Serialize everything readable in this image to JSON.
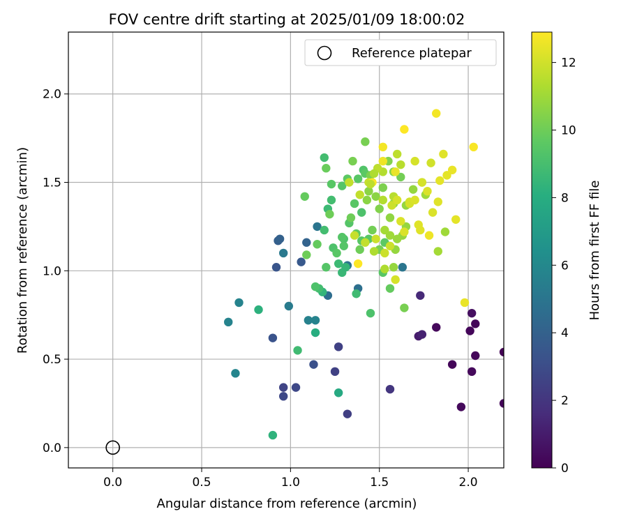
{
  "chart_data": {
    "type": "scatter",
    "title": "FOV centre drift starting at 2025/01/09 18:00:02",
    "xlabel": "Angular distance from reference (arcmin)",
    "ylabel": "Rotation from reference (arcmin)",
    "xlim": [
      -0.25,
      2.2
    ],
    "ylim": [
      -0.115,
      2.35
    ],
    "xticks": [
      "0.0",
      "0.5",
      "1.0",
      "1.5",
      "2.0"
    ],
    "yticks": [
      "0.0",
      "0.5",
      "1.0",
      "1.5",
      "2.0"
    ],
    "grid": true,
    "legend": {
      "placement": "top-right",
      "entries": [
        "Reference platepar"
      ]
    },
    "reference": {
      "x": 0.0,
      "y": 0.0,
      "label": "Reference platepar"
    },
    "colorbar": {
      "label": "Hours from first FF file",
      "min": 0,
      "max": 12.9,
      "ticks": [
        "0",
        "2",
        "4",
        "6",
        "8",
        "10",
        "12"
      ],
      "colormap": "viridis"
    },
    "points": [
      [
        2.01,
        0.66,
        0.2
      ],
      [
        2.04,
        0.7,
        0.2
      ],
      [
        2.04,
        0.52,
        0.2
      ],
      [
        2.02,
        0.43,
        0.3
      ],
      [
        2.02,
        0.76,
        0.5
      ],
      [
        1.96,
        0.23,
        0.3
      ],
      [
        1.91,
        0.47,
        0.2
      ],
      [
        2.2,
        0.54,
        0.1
      ],
      [
        2.2,
        0.25,
        0.2
      ],
      [
        1.82,
        0.68,
        0.3
      ],
      [
        1.72,
        0.63,
        1.0
      ],
      [
        1.74,
        0.64,
        1.2
      ],
      [
        1.73,
        0.86,
        1.5
      ],
      [
        1.56,
        0.33,
        2.0
      ],
      [
        1.32,
        0.19,
        2.4
      ],
      [
        1.27,
        0.57,
        2.5
      ],
      [
        1.25,
        0.43,
        2.5
      ],
      [
        0.96,
        0.34,
        2.6
      ],
      [
        0.96,
        0.29,
        2.8
      ],
      [
        1.03,
        0.34,
        2.8
      ],
      [
        1.13,
        0.47,
        3.2
      ],
      [
        0.9,
        0.62,
        3.3
      ],
      [
        0.92,
        1.02,
        3.4
      ],
      [
        1.06,
        1.05,
        3.6
      ],
      [
        0.93,
        1.17,
        3.9
      ],
      [
        0.94,
        1.18,
        4.0
      ],
      [
        1.09,
        1.16,
        4.1
      ],
      [
        1.15,
        1.25,
        5.0
      ],
      [
        1.21,
        0.86,
        4.6
      ],
      [
        1.38,
        0.9,
        4.7
      ],
      [
        1.32,
        1.03,
        4.9
      ],
      [
        1.63,
        1.02,
        5.0
      ],
      [
        0.96,
        1.1,
        5.2
      ],
      [
        0.99,
        0.8,
        5.3
      ],
      [
        1.1,
        0.72,
        5.6
      ],
      [
        1.14,
        0.72,
        5.7
      ],
      [
        0.71,
        0.82,
        5.7
      ],
      [
        0.65,
        0.71,
        5.7
      ],
      [
        0.69,
        0.42,
        5.8
      ],
      [
        1.27,
        0.31,
        7.8
      ],
      [
        0.9,
        0.07,
        8.3
      ],
      [
        0.82,
        0.78,
        8.2
      ],
      [
        1.14,
        0.65,
        8.0
      ],
      [
        1.18,
        0.88,
        8.4
      ],
      [
        1.04,
        0.55,
        8.8
      ],
      [
        1.16,
        0.9,
        8.9
      ],
      [
        1.29,
        0.99,
        8.6
      ],
      [
        1.31,
        1.02,
        8.5
      ],
      [
        1.27,
        1.04,
        8.7
      ],
      [
        1.19,
        1.23,
        8.9
      ],
      [
        1.21,
        1.35,
        8.7
      ],
      [
        1.23,
        1.4,
        8.9
      ],
      [
        1.19,
        1.64,
        8.9
      ],
      [
        1.37,
        0.87,
        8.8
      ],
      [
        1.45,
        0.76,
        9.2
      ],
      [
        1.14,
        0.91,
        9.2
      ],
      [
        1.2,
        1.02,
        9.4
      ],
      [
        1.24,
        1.13,
        9.2
      ],
      [
        1.26,
        1.1,
        9.5
      ],
      [
        1.3,
        1.18,
        9.2
      ],
      [
        1.3,
        1.14,
        9.4
      ],
      [
        1.29,
        1.19,
        9.4
      ],
      [
        1.33,
        1.27,
        9.4
      ],
      [
        1.36,
        1.38,
        9.5
      ],
      [
        1.32,
        1.52,
        9.6
      ],
      [
        1.29,
        1.48,
        9.4
      ],
      [
        1.23,
        1.49,
        9.5
      ],
      [
        1.4,
        1.33,
        9.2
      ],
      [
        1.4,
        1.17,
        9.5
      ],
      [
        1.37,
        1.21,
        9.7
      ],
      [
        1.44,
        1.18,
        9.5
      ],
      [
        1.53,
        1.16,
        9.6
      ],
      [
        1.52,
        0.99,
        9.5
      ],
      [
        1.56,
        0.9,
        9.8
      ],
      [
        1.64,
        0.79,
        10.2
      ],
      [
        1.41,
        1.57,
        9.3
      ],
      [
        1.38,
        1.52,
        9.5
      ],
      [
        1.42,
        1.55,
        9.6
      ],
      [
        1.15,
        1.15,
        9.8
      ],
      [
        1.08,
        1.42,
        9.8
      ],
      [
        1.09,
        1.09,
        10.0
      ],
      [
        1.2,
        1.58,
        9.9
      ],
      [
        1.22,
        1.32,
        10.0
      ],
      [
        1.34,
        1.3,
        10.0
      ],
      [
        1.39,
        1.12,
        10.0
      ],
      [
        1.46,
        1.23,
        10.1
      ],
      [
        1.5,
        1.12,
        10.2
      ],
      [
        1.5,
        1.35,
        10.4
      ],
      [
        1.52,
        1.47,
        10.3
      ],
      [
        1.42,
        1.73,
        10.2
      ],
      [
        1.35,
        1.62,
        10.2
      ],
      [
        1.45,
        1.54,
        10.3
      ],
      [
        1.55,
        1.62,
        10.4
      ],
      [
        1.58,
        1.56,
        10.5
      ],
      [
        1.62,
        1.53,
        10.1
      ],
      [
        1.48,
        1.42,
        10.6
      ],
      [
        1.43,
        1.4,
        10.6
      ],
      [
        1.44,
        1.45,
        10.6
      ],
      [
        1.58,
        1.38,
        10.6
      ],
      [
        1.59,
        1.12,
        10.8
      ],
      [
        1.58,
        1.02,
        10.8
      ],
      [
        1.56,
        1.3,
        10.7
      ],
      [
        1.63,
        1.2,
        10.8
      ],
      [
        1.65,
        1.25,
        10.8
      ],
      [
        1.6,
        1.18,
        10.9
      ],
      [
        1.65,
        1.37,
        10.8
      ],
      [
        1.69,
        1.46,
        10.8
      ],
      [
        1.74,
        1.5,
        11.0
      ],
      [
        1.76,
        1.43,
        11.0
      ],
      [
        1.87,
        1.22,
        11.0
      ],
      [
        1.83,
        1.11,
        11.1
      ],
      [
        1.56,
        1.2,
        11.0
      ],
      [
        1.53,
        1.23,
        11.1
      ],
      [
        1.47,
        1.11,
        11.3
      ],
      [
        1.53,
        1.01,
        11.3
      ],
      [
        1.52,
        1.4,
        11.4
      ],
      [
        1.52,
        1.56,
        11.4
      ],
      [
        1.58,
        1.42,
        11.5
      ],
      [
        1.62,
        1.6,
        11.5
      ],
      [
        1.6,
        1.66,
        11.6
      ],
      [
        1.49,
        1.58,
        11.6
      ],
      [
        1.44,
        1.5,
        11.8
      ],
      [
        1.39,
        1.43,
        11.7
      ],
      [
        1.33,
        1.5,
        11.7
      ],
      [
        1.36,
        1.2,
        11.8
      ],
      [
        1.42,
        1.16,
        11.7
      ],
      [
        1.48,
        1.18,
        11.9
      ],
      [
        1.53,
        1.1,
        11.9
      ],
      [
        1.57,
        1.37,
        11.9
      ],
      [
        1.6,
        1.4,
        12.1
      ],
      [
        1.62,
        1.28,
        12.2
      ],
      [
        1.64,
        1.22,
        12.2
      ],
      [
        1.67,
        1.39,
        12.0
      ],
      [
        1.67,
        1.38,
        12.1
      ],
      [
        1.73,
        1.23,
        12.3
      ],
      [
        1.72,
        1.26,
        12.3
      ],
      [
        1.7,
        1.4,
        12.2
      ],
      [
        1.7,
        1.62,
        12.1
      ],
      [
        1.74,
        1.5,
        12.1
      ],
      [
        1.77,
        1.45,
        12.2
      ],
      [
        1.79,
        1.61,
        12.0
      ],
      [
        1.8,
        1.33,
        12.2
      ],
      [
        1.83,
        1.39,
        12.3
      ],
      [
        1.86,
        1.66,
        12.3
      ],
      [
        1.84,
        1.51,
        12.4
      ],
      [
        1.88,
        1.54,
        12.4
      ],
      [
        1.93,
        1.29,
        12.4
      ],
      [
        1.91,
        1.57,
        12.5
      ],
      [
        1.98,
        0.82,
        12.5
      ],
      [
        1.82,
        1.89,
        12.7
      ],
      [
        2.03,
        1.7,
        12.8
      ],
      [
        1.64,
        1.8,
        12.9
      ],
      [
        1.52,
        1.7,
        12.7
      ],
      [
        1.46,
        1.5,
        12.8
      ],
      [
        1.38,
        1.04,
        12.9
      ],
      [
        1.59,
        0.95,
        12.1
      ],
      [
        1.59,
        1.56,
        12.5
      ],
      [
        1.52,
        1.62,
        12.6
      ],
      [
        1.78,
        1.2,
        12.6
      ],
      [
        1.56,
        1.14,
        11.9
      ],
      [
        1.45,
        1.49,
        11.6
      ],
      [
        1.47,
        1.55,
        11.3
      ]
    ]
  }
}
